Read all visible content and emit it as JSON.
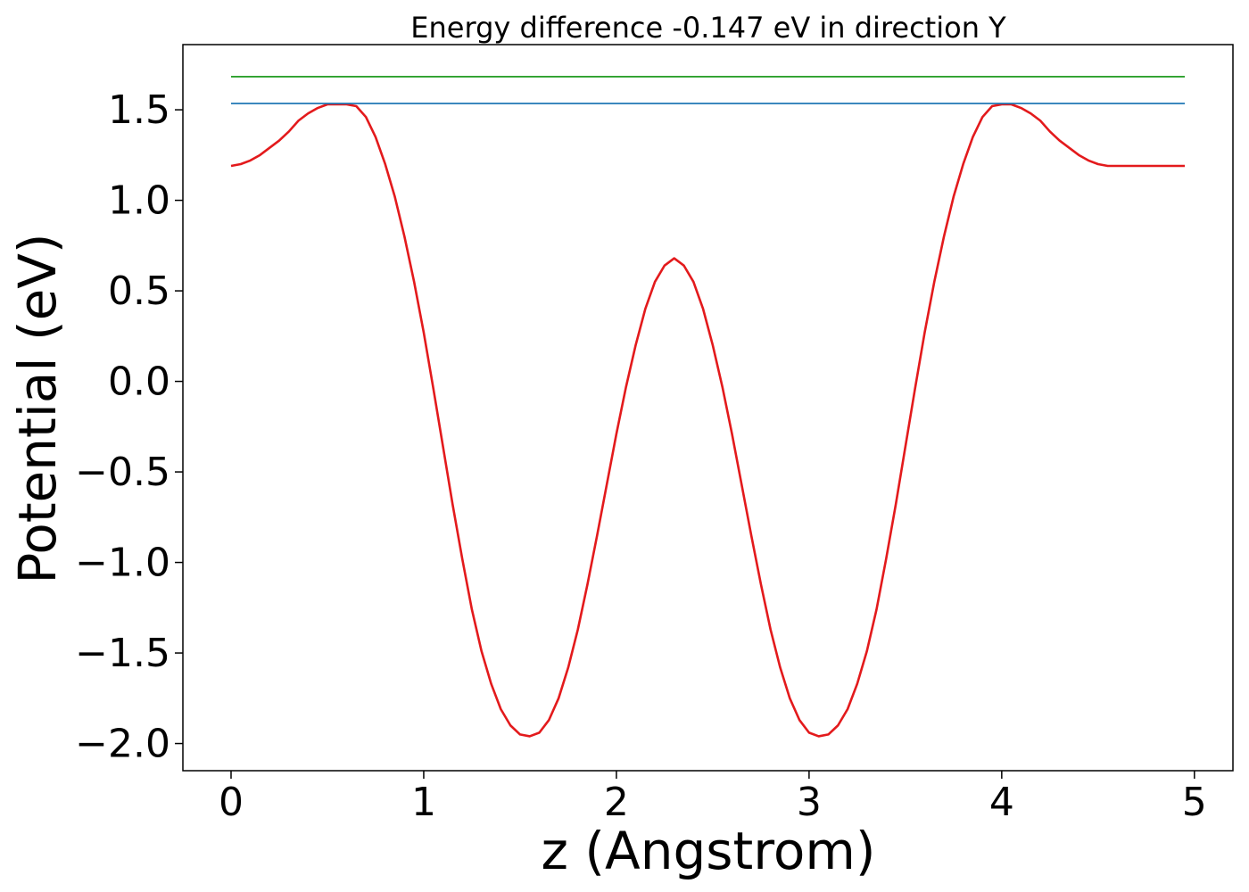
{
  "chart_data": {
    "type": "line",
    "title": "Energy difference -0.147 eV in direction Y",
    "xlabel": "z (Angstrom)",
    "ylabel": "Potential (eV)",
    "xlim": [
      -0.25,
      5.2
    ],
    "ylim": [
      -2.15,
      1.86
    ],
    "xticks": [
      0,
      1,
      2,
      3,
      4,
      5
    ],
    "xtick_labels": [
      "0",
      "1",
      "2",
      "3",
      "4",
      "5"
    ],
    "yticks": [
      1.5,
      1.0,
      0.5,
      0.0,
      -0.5,
      -1.0,
      -1.5,
      -2.0
    ],
    "ytick_labels": [
      "1.5",
      "1.0",
      "0.5",
      "0.0",
      "−0.5",
      "−1.0",
      "−1.5",
      "−2.0"
    ],
    "grid": false,
    "colors": {
      "potential": "#e31a1c",
      "level_low": "#1f77b4",
      "level_high": "#2ca02c"
    },
    "series": [
      {
        "x": [
          0.0,
          0.05,
          0.1,
          0.15,
          0.2,
          0.25,
          0.3,
          0.35,
          0.4,
          0.45,
          0.5,
          0.55,
          0.6,
          0.65,
          0.7,
          0.75,
          0.8,
          0.85,
          0.9,
          0.95,
          1.0,
          1.05,
          1.1,
          1.15,
          1.2,
          1.25,
          1.3,
          1.35,
          1.4,
          1.45,
          1.5,
          1.55,
          1.6,
          1.65,
          1.7,
          1.75,
          1.8,
          1.85,
          1.9,
          1.95,
          2.0,
          2.05,
          2.1,
          2.15,
          2.2,
          2.25,
          2.3,
          2.35,
          2.4,
          2.45,
          2.5,
          2.55,
          2.6,
          2.65,
          2.7,
          2.75,
          2.8,
          2.85,
          2.9,
          2.95,
          3.0,
          3.05,
          3.1,
          3.15,
          3.2,
          3.25,
          3.3,
          3.35,
          3.4,
          3.45,
          3.5,
          3.55,
          3.6,
          3.65,
          3.7,
          3.75,
          3.8,
          3.85,
          3.9,
          3.95,
          4.0,
          4.05,
          4.1,
          4.15,
          4.2,
          4.25,
          4.3,
          4.35,
          4.4,
          4.45,
          4.5,
          4.55,
          4.6,
          4.65,
          4.7,
          4.75,
          4.8,
          4.85,
          4.9,
          4.95
        ],
        "y": [
          1.19,
          1.2,
          1.22,
          1.25,
          1.29,
          1.33,
          1.38,
          1.44,
          1.48,
          1.51,
          1.53,
          1.53,
          1.53,
          1.52,
          1.46,
          1.35,
          1.2,
          1.02,
          0.8,
          0.55,
          0.27,
          -0.04,
          -0.36,
          -0.68,
          -0.98,
          -1.26,
          -1.49,
          -1.67,
          -1.81,
          -1.9,
          -1.95,
          -1.96,
          -1.94,
          -1.87,
          -1.75,
          -1.58,
          -1.37,
          -1.12,
          -0.85,
          -0.57,
          -0.29,
          -0.03,
          0.2,
          0.4,
          0.55,
          0.64,
          0.68,
          0.64,
          0.55,
          0.4,
          0.2,
          -0.03,
          -0.29,
          -0.57,
          -0.85,
          -1.12,
          -1.37,
          -1.58,
          -1.75,
          -1.87,
          -1.94,
          -1.96,
          -1.95,
          -1.9,
          -1.81,
          -1.67,
          -1.49,
          -1.26,
          -0.98,
          -0.68,
          -0.36,
          -0.04,
          0.27,
          0.55,
          0.8,
          1.02,
          1.2,
          1.35,
          1.46,
          1.52,
          1.53,
          1.53,
          1.51,
          1.48,
          1.44,
          1.38,
          1.33,
          1.29,
          1.25,
          1.22,
          1.2,
          1.19,
          1.19,
          1.19,
          1.19,
          1.19,
          1.19,
          1.19,
          1.19,
          1.19
        ]
      },
      {
        "x": [
          0.0,
          4.95
        ],
        "y": [
          1.535,
          1.535
        ]
      },
      {
        "x": [
          0.0,
          4.95
        ],
        "y": [
          1.683,
          1.683
        ]
      }
    ]
  }
}
